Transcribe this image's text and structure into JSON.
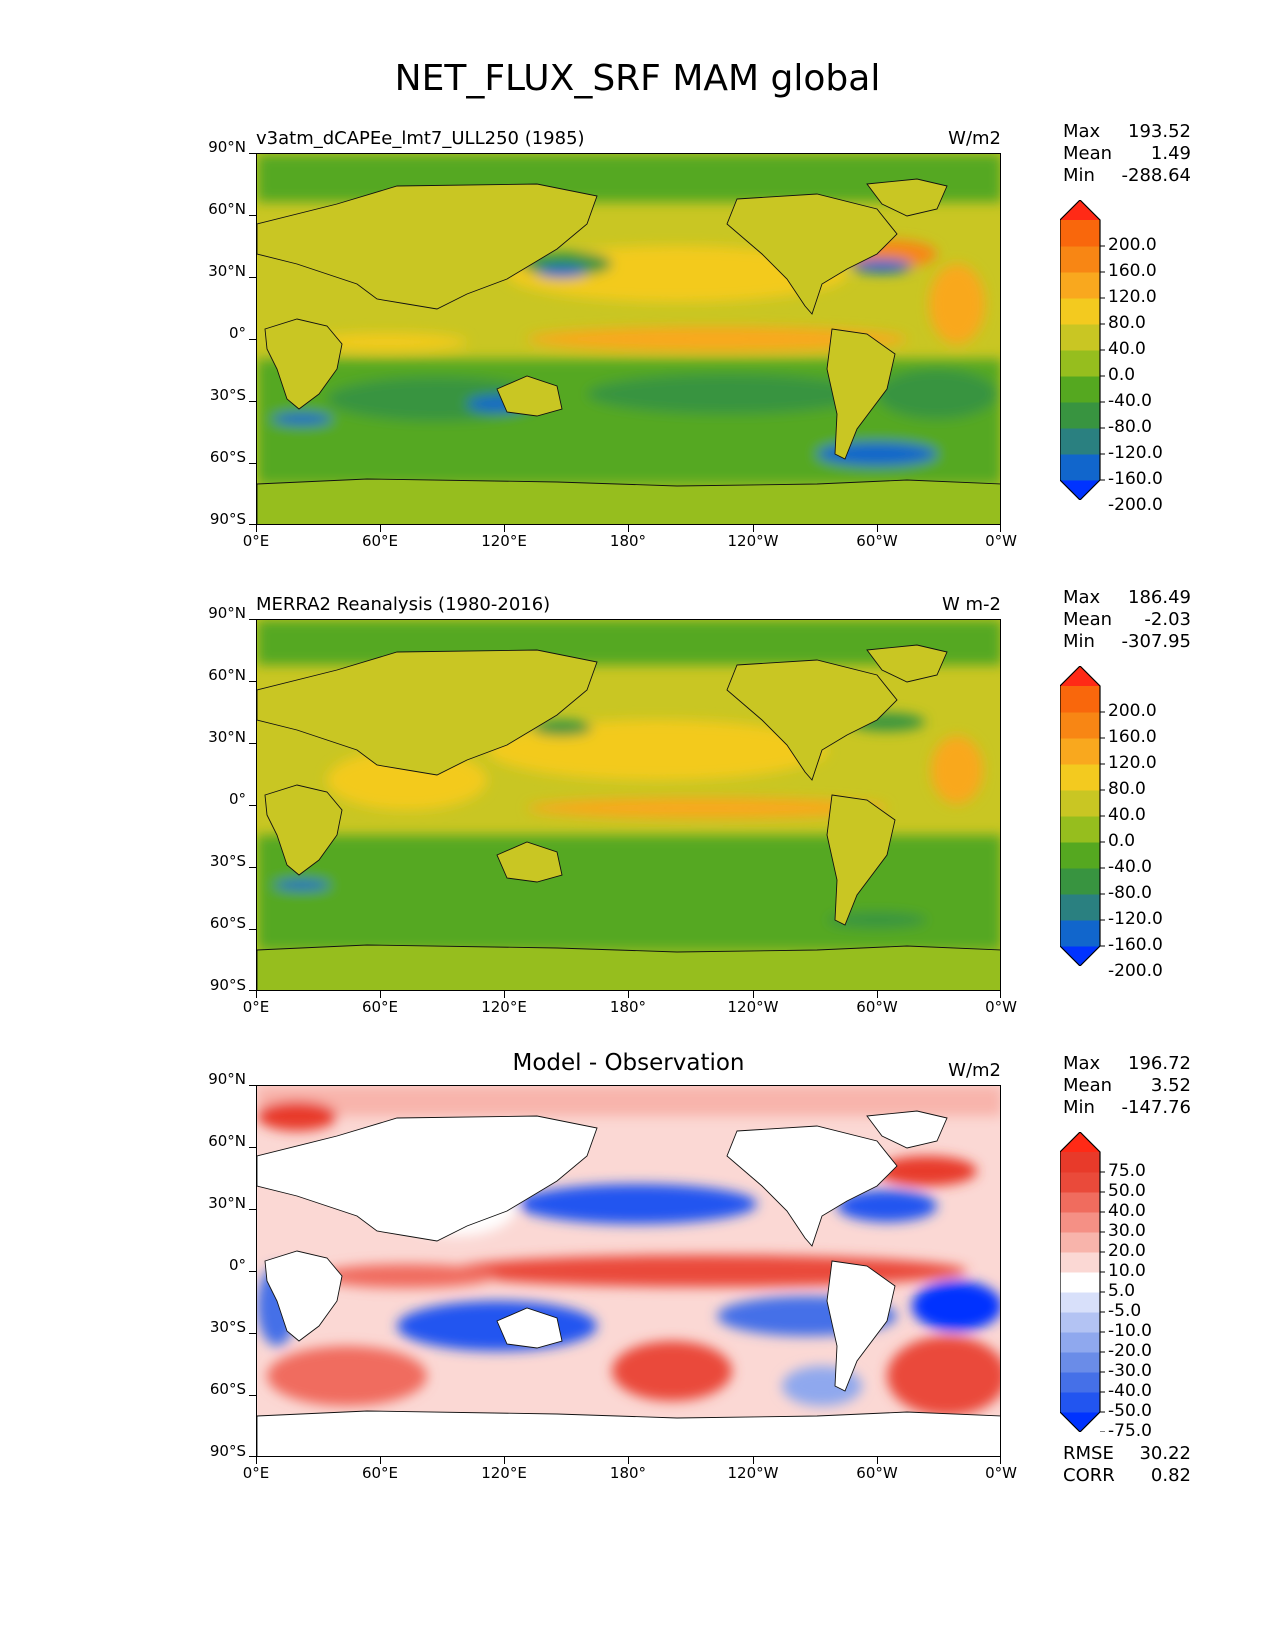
{
  "title": "NET_FLUX_SRF MAM global",
  "axes": {
    "y_labels": [
      "90°N",
      "60°N",
      "30°N",
      "0°",
      "30°S",
      "60°S",
      "90°S"
    ],
    "x_labels": [
      "0°E",
      "60°E",
      "120°E",
      "180°",
      "120°W",
      "60°W",
      "0°W"
    ]
  },
  "panels": [
    {
      "title_left": "v3atm_dCAPEe_lmt7_ULL250 (1985)",
      "title_center": "",
      "units": "W/m2",
      "stats": [
        {
          "label": "Max",
          "value": "193.52"
        },
        {
          "label": "Mean",
          "value": "1.49"
        },
        {
          "label": "Min",
          "value": "-288.64"
        }
      ],
      "colorbar": {
        "labels": [
          "200.0",
          "160.0",
          "120.0",
          "80.0",
          "40.0",
          "0.0",
          "-40.0",
          "-80.0",
          "-120.0",
          "-160.0",
          "-200.0"
        ],
        "colors": [
          "#0033ff",
          "#1166cc",
          "#2a8080",
          "#389440",
          "#55a820",
          "#96be1e",
          "#c9c623",
          "#f3ca1f",
          "#f9a81e",
          "#f88614",
          "#f9670c",
          "#ff2a16"
        ]
      }
    },
    {
      "title_left": "MERRA2 Reanalysis (1980-2016)",
      "title_center": "",
      "units": "W m-2",
      "stats": [
        {
          "label": "Max",
          "value": "186.49"
        },
        {
          "label": "Mean",
          "value": "-2.03"
        },
        {
          "label": "Min",
          "value": "-307.95"
        }
      ],
      "colorbar": {
        "labels": [
          "200.0",
          "160.0",
          "120.0",
          "80.0",
          "40.0",
          "0.0",
          "-40.0",
          "-80.0",
          "-120.0",
          "-160.0",
          "-200.0"
        ],
        "colors": [
          "#0033ff",
          "#1166cc",
          "#2a8080",
          "#389440",
          "#55a820",
          "#96be1e",
          "#c9c623",
          "#f3ca1f",
          "#f9a81e",
          "#f88614",
          "#f9670c",
          "#ff2a16"
        ]
      }
    },
    {
      "title_left": "",
      "title_center": "Model - Observation",
      "units": "W/m2",
      "stats": [
        {
          "label": "Max",
          "value": "196.72"
        },
        {
          "label": "Mean",
          "value": "3.52"
        },
        {
          "label": "Min",
          "value": "-147.76"
        }
      ],
      "colorbar": {
        "labels": [
          "75.0",
          "50.0",
          "40.0",
          "30.0",
          "20.0",
          "10.0",
          "5.0",
          "-5.0",
          "-10.0",
          "-20.0",
          "-30.0",
          "-40.0",
          "-50.0",
          "-75.0"
        ],
        "colors": [
          "#0033ff",
          "#2255f0",
          "#4570e8",
          "#6a8ce8",
          "#8fa8ee",
          "#b3c3f3",
          "#d8e0fa",
          "#ffffff",
          "#fbd8d4",
          "#f8b4ab",
          "#f59085",
          "#f06c5e",
          "#ea4a3a",
          "#e83a2a",
          "#ff2a16"
        ]
      },
      "extra_stats": [
        {
          "label": "RMSE",
          "value": "30.22"
        },
        {
          "label": "CORR",
          "value": "0.82"
        }
      ]
    }
  ],
  "chart_data": [
    {
      "type": "heatmap",
      "title": "v3atm_dCAPEe_lmt7_ULL250 (1985)",
      "units": "W/m2",
      "xlim": [
        0,
        360
      ],
      "ylim": [
        -90,
        90
      ],
      "xticks": [
        "0°E",
        "60°E",
        "120°E",
        "180°",
        "120°W",
        "60°W",
        "0°W"
      ],
      "yticks": [
        "90°N",
        "60°N",
        "30°N",
        "0°",
        "30°S",
        "60°S",
        "90°S"
      ],
      "stats": {
        "max": 193.52,
        "mean": 1.49,
        "min": -288.64
      },
      "levels": [
        -200,
        -160,
        -120,
        -80,
        -40,
        0,
        40,
        80,
        120,
        160,
        200
      ]
    },
    {
      "type": "heatmap",
      "title": "MERRA2 Reanalysis (1980-2016)",
      "units": "W m-2",
      "xlim": [
        0,
        360
      ],
      "ylim": [
        -90,
        90
      ],
      "xticks": [
        "0°E",
        "60°E",
        "120°E",
        "180°",
        "120°W",
        "60°W",
        "0°W"
      ],
      "yticks": [
        "90°N",
        "60°N",
        "30°N",
        "0°",
        "30°S",
        "60°S",
        "90°S"
      ],
      "stats": {
        "max": 186.49,
        "mean": -2.03,
        "min": -307.95
      },
      "levels": [
        -200,
        -160,
        -120,
        -80,
        -40,
        0,
        40,
        80,
        120,
        160,
        200
      ]
    },
    {
      "type": "heatmap",
      "title": "Model - Observation",
      "units": "W/m2",
      "xlim": [
        0,
        360
      ],
      "ylim": [
        -90,
        90
      ],
      "xticks": [
        "0°E",
        "60°E",
        "120°E",
        "180°",
        "120°W",
        "60°W",
        "0°W"
      ],
      "yticks": [
        "90°N",
        "60°N",
        "30°N",
        "0°",
        "30°S",
        "60°S",
        "90°S"
      ],
      "stats": {
        "max": 196.72,
        "mean": 3.52,
        "min": -147.76,
        "rmse": 30.22,
        "corr": 0.82
      },
      "levels": [
        -75,
        -50,
        -40,
        -30,
        -20,
        -10,
        -5,
        5,
        10,
        20,
        30,
        40,
        50,
        75
      ]
    }
  ]
}
